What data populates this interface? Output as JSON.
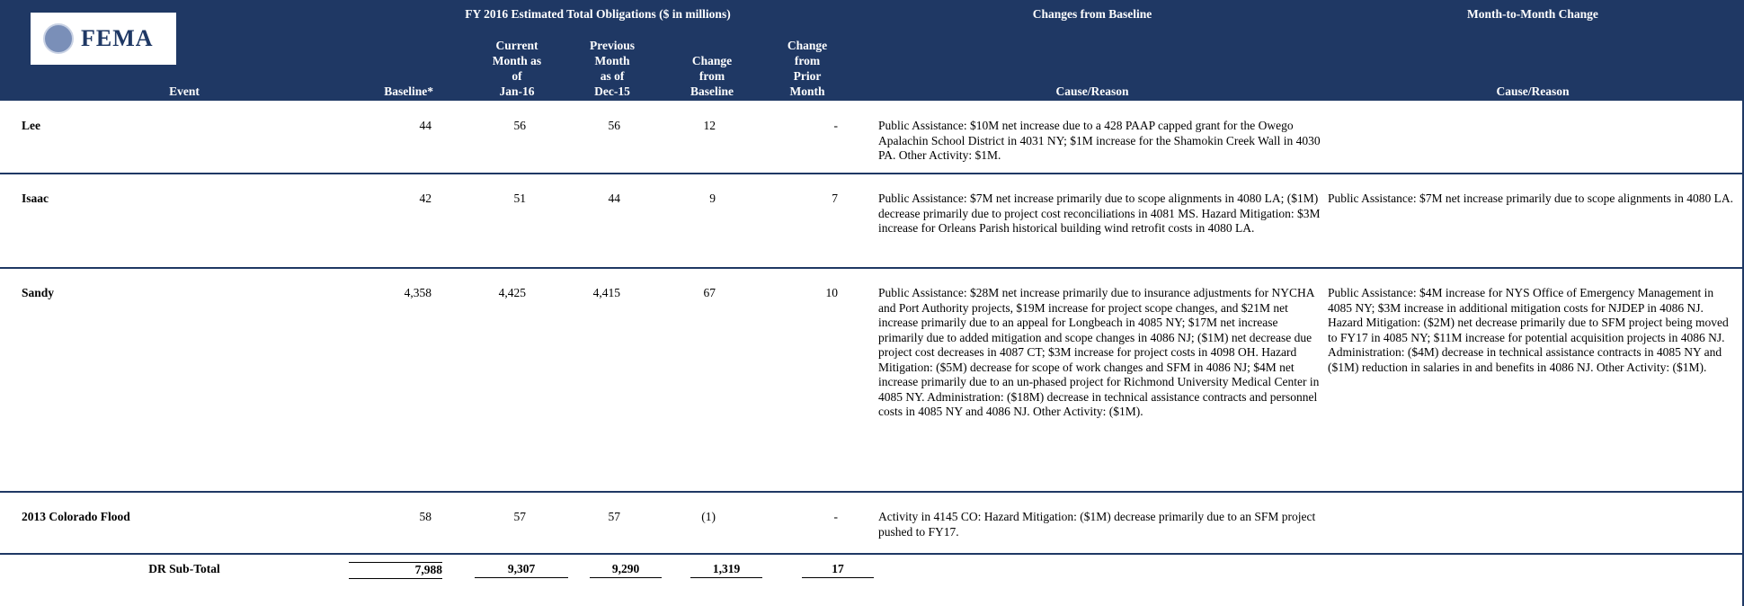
{
  "header": {
    "logo": "FEMA",
    "group_title": "FY 2016 Estimated Total Obligations ($ in millions)",
    "changes_title": "Changes from Baseline",
    "month_title": "Month-to-Month Change",
    "columns": [
      [
        "Event"
      ],
      [
        "Baseline*"
      ],
      [
        "Current",
        "Month as",
        "of",
        "Jan-16"
      ],
      [
        "Previous",
        "Month",
        "as of",
        "Dec-15"
      ],
      [
        "Change",
        "from",
        "Baseline"
      ],
      [
        "Change",
        "from",
        "Prior",
        "Month"
      ],
      [
        "Cause/Reason"
      ],
      [
        "Cause/Reason"
      ]
    ]
  },
  "rows": [
    {
      "event": "Lee",
      "baseline": "44",
      "current": "56",
      "previous": "56",
      "change_baseline": "12",
      "change_prior": "-",
      "cause": "Public Assistance: $10M net increase due to a 428 PAAP capped grant for the Owego Apalachin School District in 4031 NY; $1M increase for the Shamokin Creek Wall in 4030 PA.  Other Activity: $1M."
    },
    {
      "event": "Isaac",
      "baseline": "42",
      "current": "51",
      "previous": "44",
      "change_baseline": "9",
      "change_prior": "7",
      "cause": "Public Assistance: $7M net increase primarily due to scope alignments in 4080 LA; ($1M) decrease primarily due to project cost reconciliations in 4081 MS.  Hazard Mitigation: $3M increase for Orleans Parish historical building wind retrofit costs in 4080 LA.",
      "month_cause": "Public Assistance: $7M net increase primarily due to scope alignments in 4080 LA."
    },
    {
      "event": "Sandy",
      "baseline": "4,358",
      "current": "4,425",
      "previous": "4,415",
      "change_baseline": "67",
      "change_prior": "10",
      "cause": "Public Assistance:  $28M net increase primarily due to insurance adjustments for NYCHA and Port Authority projects, $19M increase for project scope changes, and $21M net increase primarily due to an appeal for Longbeach in 4085 NY; $17M net increase primarily due to added mitigation and scope changes in 4086 NJ; ($1M) net decrease due project cost decreases in 4087 CT; $3M increase for project costs in 4098 OH.  Hazard Mitigation: ($5M) decrease for scope of work changes and SFM in 4086 NJ; $4M net increase primarily due to an un-phased project for Richmond University Medical Center in 4085 NY.  Administration: ($18M) decrease in technical assistance contracts and personnel costs in 4085 NY and 4086 NJ.  Other Activity: ($1M).",
      "month_cause": "Public Assistance: $4M increase for NYS Office of Emergency Management in 4085 NY; $3M increase in additional mitigation costs for NJDEP in 4086 NJ.  Hazard Mitigation: ($2M) net decrease primarily due to SFM project being moved to FY17 in 4085 NY; $11M increase for potential acquisition projects in 4086 NJ.  Administration: ($4M) decrease in technical assistance contracts in 4085 NY and ($1M) reduction in salaries in and benefits in 4086 NJ.  Other Activity: ($1M)."
    },
    {
      "event": "2013 Colorado Flood",
      "baseline": "58",
      "current": "57",
      "previous": "57",
      "change_baseline": "(1)",
      "change_prior": "-",
      "cause": "Activity in 4145 CO: Hazard Mitigation: ($1M) decrease primarily due to an SFM project pushed to FY17."
    }
  ],
  "subtotal": {
    "event": "DR Sub-Total",
    "baseline": "7,988",
    "current": "9,307",
    "previous": "9,290",
    "change_baseline": "1,319",
    "change_prior": "17"
  }
}
